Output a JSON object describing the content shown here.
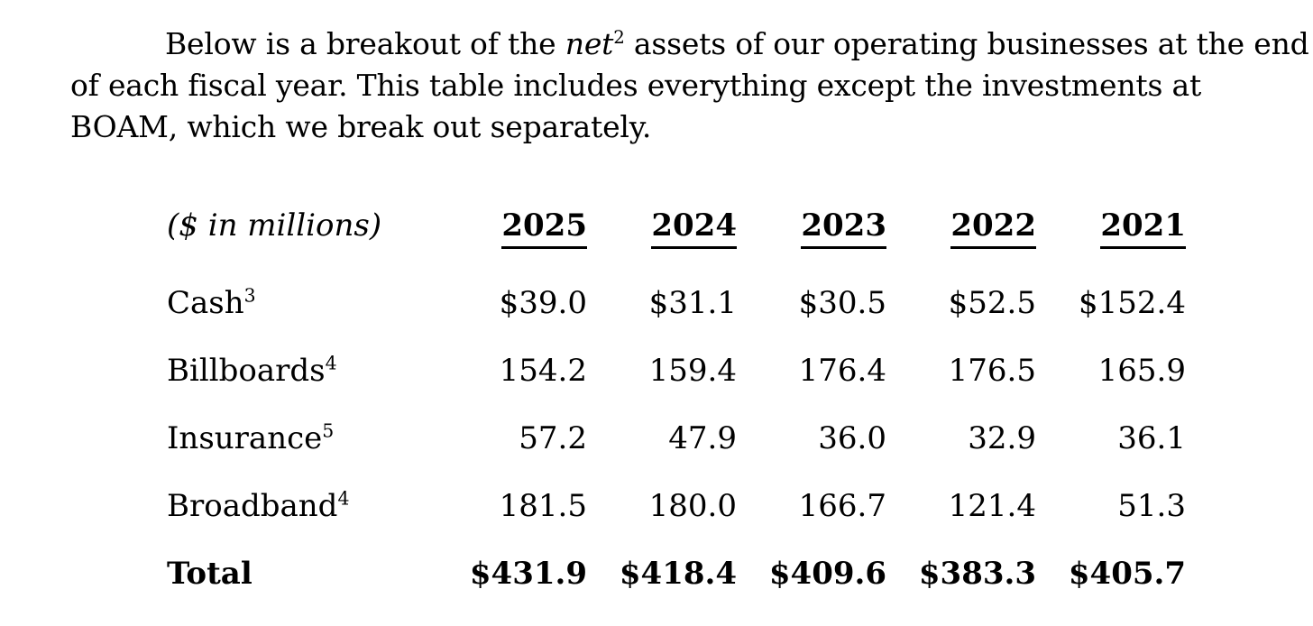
{
  "colors": {
    "text": "#000000",
    "background": "#ffffff"
  },
  "paragraph": {
    "line1_before_net": "Below is a breakout of the ",
    "net_word": "net",
    "net_footnote": "2",
    "line1_after_net": " assets of our operating businesses at the end",
    "line2": "of each fiscal year. This table includes everything except the investments at",
    "line3": "BOAM, which we break out separately."
  },
  "table": {
    "unit_label": "($ in millions)",
    "years": [
      "2025",
      "2024",
      "2023",
      "2022",
      "2021"
    ],
    "rows": [
      {
        "label": "Cash",
        "footnote": "3",
        "values": [
          "$39.0",
          "$31.1",
          "$30.5",
          "$52.5",
          "$152.4"
        ]
      },
      {
        "label": "Billboards",
        "footnote": "4",
        "values": [
          "154.2",
          "159.4",
          "176.4",
          "176.5",
          "165.9"
        ]
      },
      {
        "label": "Insurance",
        "footnote": "5",
        "values": [
          "57.2",
          "47.9",
          "36.0",
          "32.9",
          "36.1"
        ]
      },
      {
        "label": "Broadband",
        "footnote": "4",
        "values": [
          "181.5",
          "180.0",
          "166.7",
          "121.4",
          "51.3"
        ]
      }
    ],
    "total_row": {
      "label": "Total",
      "values": [
        "$431.9",
        "$418.4",
        "$409.6",
        "$383.3",
        "$405.7"
      ]
    }
  }
}
